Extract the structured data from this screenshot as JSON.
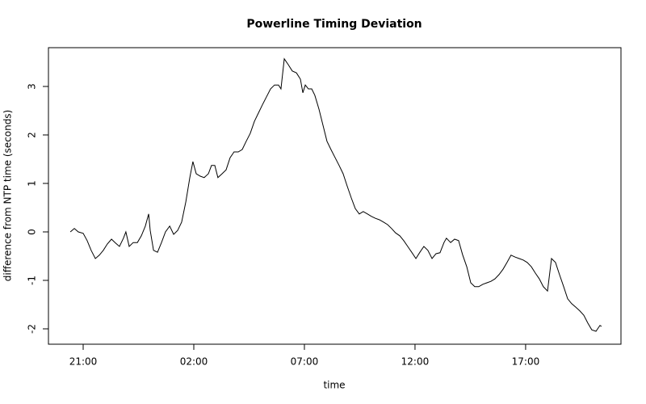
{
  "chart_data": {
    "type": "line",
    "title": "Powerline Timing Deviation",
    "x_label": "time",
    "y_label": "difference from NTP time (seconds)",
    "xlim": [
      19.43,
      45.31
    ],
    "ylim": [
      -2.317,
      3.8
    ],
    "xticks": [
      {
        "value": 21,
        "label": "21:00"
      },
      {
        "value": 26,
        "label": "02:00"
      },
      {
        "value": 31,
        "label": "07:00"
      },
      {
        "value": 36,
        "label": "12:00"
      },
      {
        "value": 41,
        "label": "17:00"
      }
    ],
    "yticks": [
      -2,
      -1,
      0,
      1,
      2,
      3
    ],
    "grid": false,
    "series": [
      {
        "color": "#000000",
        "x": [
          20.42,
          20.6,
          20.78,
          21.0,
          21.18,
          21.36,
          21.55,
          21.73,
          21.91,
          22.09,
          22.28,
          22.46,
          22.64,
          22.82,
          22.93,
          23.08,
          23.26,
          23.45,
          23.63,
          23.81,
          23.96,
          24.03,
          24.18,
          24.36,
          24.54,
          24.72,
          24.91,
          25.09,
          25.27,
          25.45,
          25.64,
          25.82,
          25.96,
          26.11,
          26.29,
          26.47,
          26.66,
          26.8,
          26.95,
          27.09,
          27.28,
          27.46,
          27.64,
          27.82,
          28.01,
          28.19,
          28.37,
          28.55,
          28.74,
          28.92,
          29.1,
          29.28,
          29.47,
          29.65,
          29.83,
          29.94,
          30.09,
          30.27,
          30.45,
          30.64,
          30.82,
          30.93,
          31.04,
          31.18,
          31.33,
          31.47,
          31.66,
          31.84,
          32.02,
          32.2,
          32.39,
          32.57,
          32.75,
          32.93,
          33.12,
          33.3,
          33.48,
          33.66,
          33.85,
          34.03,
          34.21,
          34.39,
          34.58,
          34.76,
          34.94,
          35.12,
          35.31,
          35.49,
          35.67,
          35.85,
          36.04,
          36.22,
          36.4,
          36.58,
          36.77,
          36.95,
          37.13,
          37.31,
          37.42,
          37.61,
          37.79,
          37.97,
          38.15,
          38.34,
          38.52,
          38.7,
          38.88,
          39.07,
          39.25,
          39.43,
          39.61,
          39.8,
          39.98,
          40.16,
          40.34,
          40.53,
          40.71,
          40.89,
          41.07,
          41.26,
          41.44,
          41.62,
          41.8,
          41.99,
          42.17,
          42.35,
          42.53,
          42.72,
          42.9,
          43.08,
          43.26,
          43.45,
          43.63,
          43.81,
          43.99,
          44.18,
          44.36,
          44.43
        ],
        "values": [
          0,
          0.07,
          0,
          -0.03,
          -0.18,
          -0.38,
          -0.55,
          -0.48,
          -0.38,
          -0.25,
          -0.15,
          -0.23,
          -0.3,
          -0.13,
          0,
          -0.3,
          -0.22,
          -0.22,
          -0.08,
          0.12,
          0.37,
          0.03,
          -0.38,
          -0.42,
          -0.22,
          0,
          0.12,
          -0.05,
          0.03,
          0.2,
          0.62,
          1.12,
          1.45,
          1.2,
          1.15,
          1.12,
          1.2,
          1.37,
          1.37,
          1.12,
          1.2,
          1.28,
          1.53,
          1.65,
          1.65,
          1.7,
          1.87,
          2.03,
          2.28,
          2.45,
          2.62,
          2.78,
          2.95,
          3.03,
          3.03,
          2.95,
          3.57,
          3.45,
          3.32,
          3.28,
          3.15,
          2.87,
          3.03,
          2.95,
          2.95,
          2.82,
          2.53,
          2.2,
          1.87,
          1.7,
          1.53,
          1.37,
          1.2,
          0.95,
          0.7,
          0.48,
          0.37,
          0.42,
          0.37,
          0.32,
          0.28,
          0.25,
          0.2,
          0.15,
          0.07,
          -0.02,
          -0.08,
          -0.18,
          -0.3,
          -0.42,
          -0.55,
          -0.42,
          -0.3,
          -0.38,
          -0.55,
          -0.45,
          -0.43,
          -0.22,
          -0.13,
          -0.22,
          -0.15,
          -0.18,
          -0.47,
          -0.72,
          -1.05,
          -1.13,
          -1.13,
          -1.08,
          -1.05,
          -1.02,
          -0.97,
          -0.88,
          -0.77,
          -0.63,
          -0.48,
          -0.52,
          -0.55,
          -0.58,
          -0.63,
          -0.72,
          -0.85,
          -0.97,
          -1.13,
          -1.22,
          -0.55,
          -0.63,
          -0.88,
          -1.13,
          -1.38,
          -1.48,
          -1.55,
          -1.63,
          -1.72,
          -1.88,
          -2.02,
          -2.05,
          -1.93,
          -1.95
        ]
      }
    ]
  }
}
